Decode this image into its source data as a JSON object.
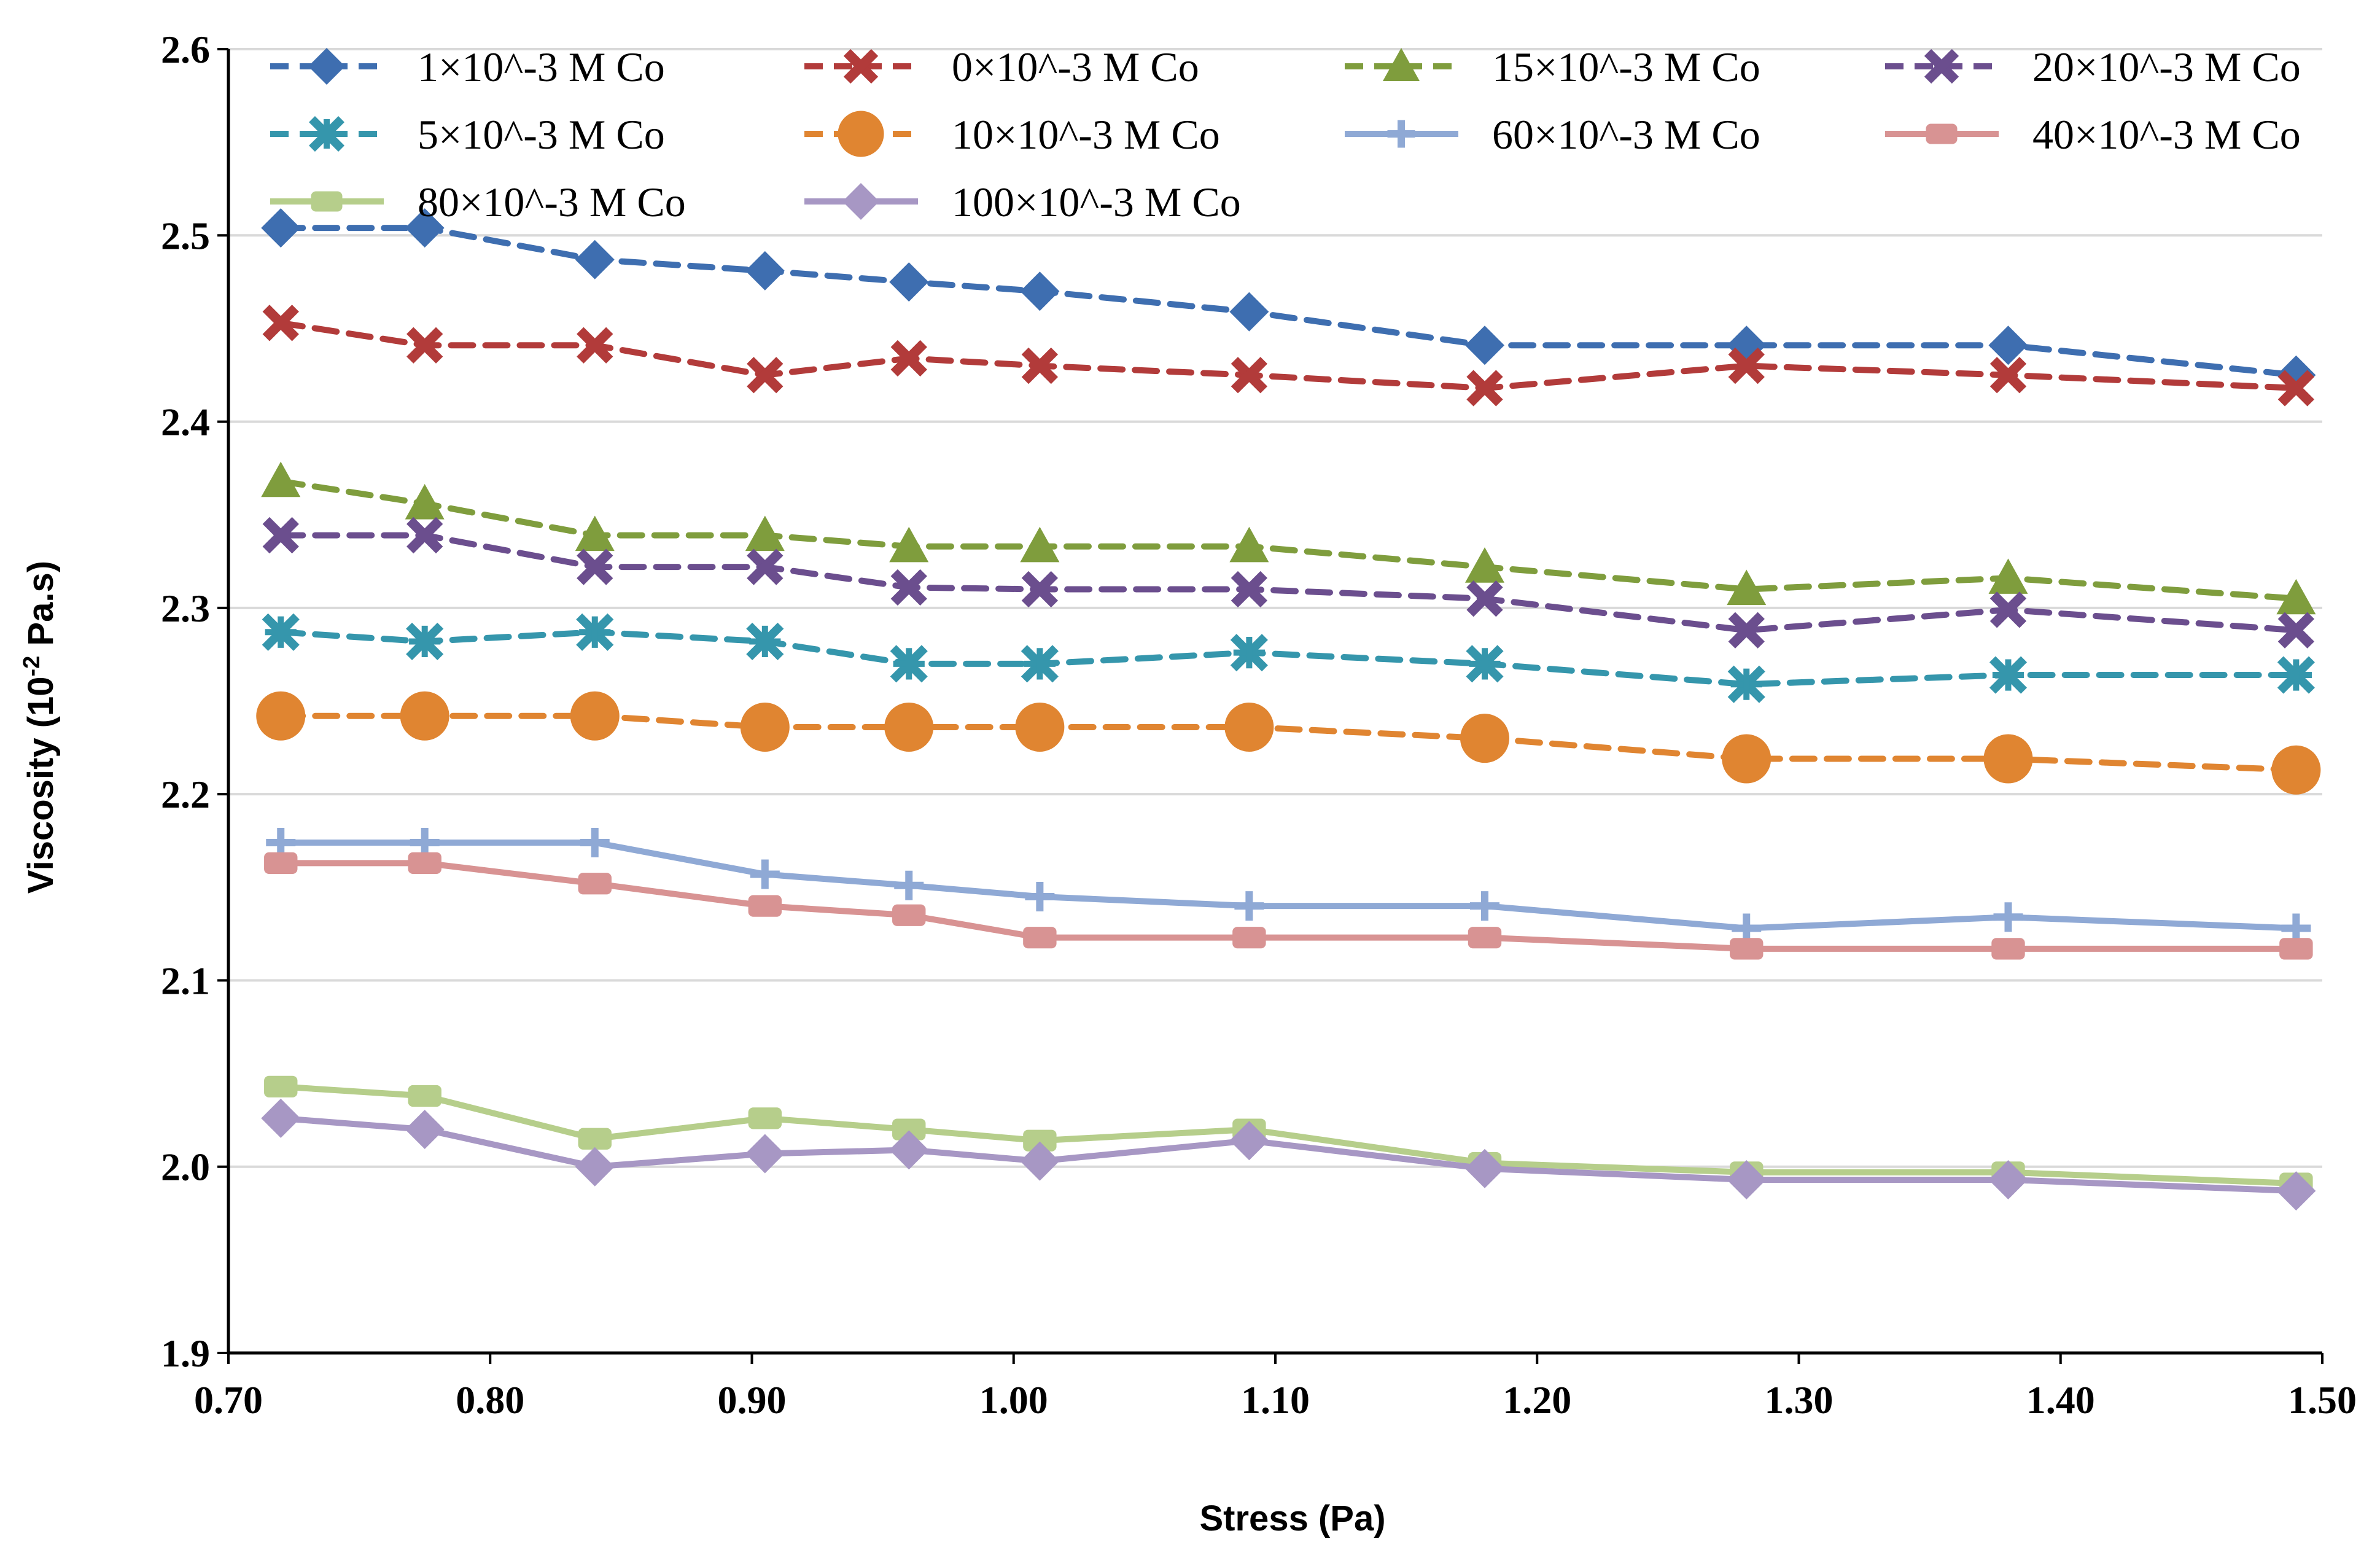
{
  "chart_data": {
    "type": "line",
    "title": "",
    "xlabel": "Stress (Pa)",
    "ylabel_main": "Viscosity (10",
    "ylabel_sup": "-2",
    "ylabel_tail": " Pa.s)",
    "xlim": [
      0.7,
      1.5
    ],
    "ylim": [
      1.9,
      2.6
    ],
    "xticks": [
      "0.70",
      "0.80",
      "0.90",
      "1.00",
      "1.10",
      "1.20",
      "1.30",
      "1.40",
      "1.50"
    ],
    "yticks": [
      "1.9",
      "2.0",
      "2.1",
      "2.2",
      "2.3",
      "2.4",
      "2.5",
      "2.6"
    ],
    "grid": "horizontal",
    "legend_position": "top",
    "x": [
      0.72,
      0.775,
      0.84,
      0.905,
      0.96,
      1.01,
      1.09,
      1.18,
      1.28,
      1.38,
      1.49
    ],
    "series": [
      {
        "name": "1×10^-3 M Co",
        "color": "#3E6EB0",
        "dash": "dashed",
        "marker": "diamond",
        "values": [
          2.504,
          2.504,
          2.487,
          2.481,
          2.475,
          2.47,
          2.459,
          2.441,
          2.441,
          2.441,
          2.425
        ]
      },
      {
        "name": "0×10^-3 M Co",
        "color": "#B23B3A",
        "dash": "dashed",
        "marker": "x",
        "values": [
          2.453,
          2.441,
          2.441,
          2.425,
          2.434,
          2.43,
          2.425,
          2.418,
          2.43,
          2.425,
          2.418
        ]
      },
      {
        "name": "15×10^-3 M Co",
        "color": "#7F9D3D",
        "dash": "dashed",
        "marker": "triangle",
        "values": [
          2.368,
          2.356,
          2.339,
          2.339,
          2.333,
          2.333,
          2.333,
          2.322,
          2.31,
          2.316,
          2.305
        ]
      },
      {
        "name": "20×10^-3 M Co",
        "color": "#6B4E8E",
        "dash": "dashed",
        "marker": "x",
        "values": [
          2.339,
          2.339,
          2.322,
          2.322,
          2.311,
          2.31,
          2.31,
          2.305,
          2.288,
          2.299,
          2.288
        ]
      },
      {
        "name": "5×10^-3 M Co",
        "color": "#3596AC",
        "dash": "dashed",
        "marker": "star",
        "values": [
          2.287,
          2.282,
          2.287,
          2.282,
          2.27,
          2.27,
          2.276,
          2.27,
          2.259,
          2.264,
          2.264
        ]
      },
      {
        "name": "10×10^-3 M Co",
        "color": "#E08531",
        "dash": "dashed",
        "marker": "circle",
        "values": [
          2.242,
          2.242,
          2.242,
          2.236,
          2.236,
          2.236,
          2.236,
          2.23,
          2.219,
          2.219,
          2.213
        ]
      },
      {
        "name": "60×10^-3 M Co",
        "color": "#8FA9D5",
        "dash": "solid",
        "marker": "plus",
        "values": [
          2.174,
          2.174,
          2.174,
          2.157,
          2.151,
          2.145,
          2.14,
          2.14,
          2.128,
          2.134,
          2.128
        ]
      },
      {
        "name": "40×10^-3 M Co",
        "color": "#D89393",
        "dash": "solid",
        "marker": "square",
        "values": [
          2.163,
          2.163,
          2.152,
          2.14,
          2.135,
          2.123,
          2.123,
          2.123,
          2.117,
          2.117,
          2.117
        ]
      },
      {
        "name": "80×10^-3 M Co",
        "color": "#B6CE8B",
        "dash": "solid",
        "marker": "square",
        "values": [
          2.043,
          2.038,
          2.015,
          2.026,
          2.02,
          2.014,
          2.02,
          2.002,
          1.997,
          1.997,
          1.991
        ]
      },
      {
        "name": "100×10^-3 M Co",
        "color": "#A797C4",
        "dash": "solid",
        "marker": "diamond",
        "values": [
          2.026,
          2.02,
          2.0,
          2.007,
          2.009,
          2.003,
          2.014,
          1.999,
          1.993,
          1.993,
          1.987
        ]
      }
    ]
  }
}
